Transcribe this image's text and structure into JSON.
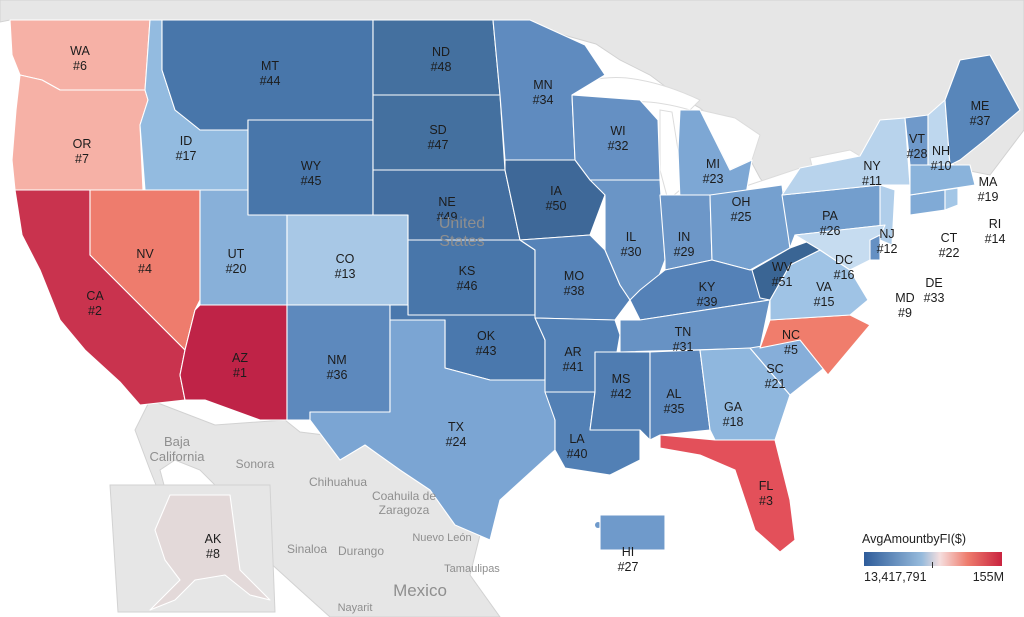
{
  "colors": {
    "ocean": "#ffffff",
    "land": "#e6e6e6",
    "scale_low": "#2e5c9a",
    "scale_mid": "#f5dede",
    "scale_high": "#c9233f"
  },
  "legend": {
    "title": "AvgAmountbyFI($)",
    "min_label": "13,417,791",
    "max_label": "155M"
  },
  "places": {
    "country_us": "United\nStates",
    "country_mexico": "Mexico",
    "baja_california": "Baja\nCalifornia",
    "sonora": "Sonora",
    "chihuahua": "Chihuahua",
    "coahuila": "Coahuila de\nZaragoza",
    "nuevo_leon": "Nuevo León",
    "sinaloa": "Sinaloa",
    "durango": "Durango",
    "tamaulipas": "Tamaulipas",
    "nayarit": "Nayarit"
  },
  "states": [
    {
      "abbr": "WA",
      "rank": "#6",
      "color": "#f6b1a6"
    },
    {
      "abbr": "OR",
      "rank": "#7",
      "color": "#f6b1a6"
    },
    {
      "abbr": "CA",
      "rank": "#2",
      "color": "#c9334e"
    },
    {
      "abbr": "NV",
      "rank": "#4",
      "color": "#ee7c6d"
    },
    {
      "abbr": "AZ",
      "rank": "#1",
      "color": "#bf2347"
    },
    {
      "abbr": "ID",
      "rank": "#17",
      "color": "#93bbe0"
    },
    {
      "abbr": "UT",
      "rank": "#20",
      "color": "#88b0d9"
    },
    {
      "abbr": "MT",
      "rank": "#44",
      "color": "#4876aa"
    },
    {
      "abbr": "WY",
      "rank": "#45",
      "color": "#4876aa"
    },
    {
      "abbr": "CO",
      "rank": "#13",
      "color": "#a8c8e6"
    },
    {
      "abbr": "NM",
      "rank": "#36",
      "color": "#5d89bd"
    },
    {
      "abbr": "ND",
      "rank": "#48",
      "color": "#44709f"
    },
    {
      "abbr": "SD",
      "rank": "#47",
      "color": "#44709f"
    },
    {
      "abbr": "NE",
      "rank": "#49",
      "color": "#436ea0"
    },
    {
      "abbr": "KS",
      "rank": "#46",
      "color": "#4876aa"
    },
    {
      "abbr": "OK",
      "rank": "#43",
      "color": "#4a78ad"
    },
    {
      "abbr": "TX",
      "rank": "#24",
      "color": "#7ba5d3"
    },
    {
      "abbr": "MN",
      "rank": "#34",
      "color": "#5f8bbf"
    },
    {
      "abbr": "IA",
      "rank": "#50",
      "color": "#3e6898"
    },
    {
      "abbr": "MO",
      "rank": "#38",
      "color": "#5683b8"
    },
    {
      "abbr": "AR",
      "rank": "#41",
      "color": "#5280b5"
    },
    {
      "abbr": "LA",
      "rank": "#40",
      "color": "#5280b5"
    },
    {
      "abbr": "WI",
      "rank": "#32",
      "color": "#6590c3"
    },
    {
      "abbr": "IL",
      "rank": "#30",
      "color": "#6a95c6"
    },
    {
      "abbr": "MI",
      "rank": "#23",
      "color": "#7da7d4"
    },
    {
      "abbr": "IN",
      "rank": "#29",
      "color": "#6d97c8"
    },
    {
      "abbr": "OH",
      "rank": "#25",
      "color": "#75a0cf"
    },
    {
      "abbr": "KY",
      "rank": "#39",
      "color": "#5481b7"
    },
    {
      "abbr": "TN",
      "rank": "#31",
      "color": "#6792c4"
    },
    {
      "abbr": "MS",
      "rank": "#42",
      "color": "#4f7cb1"
    },
    {
      "abbr": "AL",
      "rank": "#35",
      "color": "#5c88bd"
    },
    {
      "abbr": "GA",
      "rank": "#18",
      "color": "#8fb7de"
    },
    {
      "abbr": "FL",
      "rank": "#3",
      "color": "#e3505a"
    },
    {
      "abbr": "SC",
      "rank": "#21",
      "color": "#86aed9"
    },
    {
      "abbr": "NC",
      "rank": "#5",
      "color": "#f07d6c"
    },
    {
      "abbr": "VA",
      "rank": "#15",
      "color": "#9fc3e5"
    },
    {
      "abbr": "WV",
      "rank": "#51",
      "color": "#3a6594"
    },
    {
      "abbr": "PA",
      "rank": "#26",
      "color": "#739ecd"
    },
    {
      "abbr": "NY",
      "rank": "#11",
      "color": "#b8d3ec"
    },
    {
      "abbr": "NJ",
      "rank": "#12",
      "color": "#b0ceea"
    },
    {
      "abbr": "DC",
      "rank": "#16",
      "color": "#9abfe3"
    },
    {
      "abbr": "MD",
      "rank": "#9",
      "color": "#c6dcf0"
    },
    {
      "abbr": "DE",
      "rank": "#33",
      "color": "#6590c3"
    },
    {
      "abbr": "CT",
      "rank": "#22",
      "color": "#80aad6"
    },
    {
      "abbr": "RI",
      "rank": "#14",
      "color": "#a3c6e6"
    },
    {
      "abbr": "MA",
      "rank": "#19",
      "color": "#8ab3db"
    },
    {
      "abbr": "VT",
      "rank": "#28",
      "color": "#6f99ca"
    },
    {
      "abbr": "NH",
      "rank": "#10",
      "color": "#bed7ee"
    },
    {
      "abbr": "ME",
      "rank": "#37",
      "color": "#5886ba"
    },
    {
      "abbr": "AK",
      "rank": "#8",
      "color": "#e3d9d9"
    },
    {
      "abbr": "HI",
      "rank": "#27",
      "color": "#6f9acb"
    }
  ]
}
